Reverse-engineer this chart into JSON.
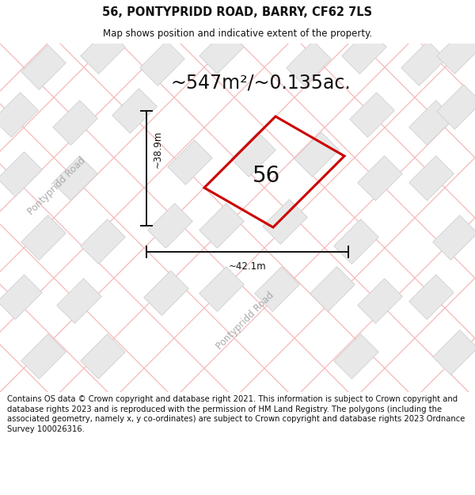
{
  "title": "56, PONTYPRIDD ROAD, BARRY, CF62 7LS",
  "subtitle": "Map shows position and indicative extent of the property.",
  "area_label": "~547m²/~0.135ac.",
  "number_label": "56",
  "dim_horizontal": "~42.1m",
  "dim_vertical": "~38.9m",
  "road_label_left": "Pontypridd Road",
  "road_label_bottom": "Pontypridd Road",
  "footer": "Contains OS data © Crown copyright and database right 2021. This information is subject to Crown copyright and database rights 2023 and is reproduced with the permission of HM Land Registry. The polygons (including the associated geometry, namely x, y co-ordinates) are subject to Crown copyright and database rights 2023 Ordnance Survey 100026316.",
  "map_bg": "#ffffff",
  "building_fill": "#e8e8e8",
  "building_edge": "#d0d0d0",
  "road_line_color": "#f5b8b8",
  "property_color": "#cc0000",
  "dim_line_color": "#111111",
  "title_fontsize": 10.5,
  "subtitle_fontsize": 8.5,
  "area_fontsize": 17,
  "number_fontsize": 20,
  "dim_fontsize": 8.5,
  "footer_fontsize": 7.2,
  "road_fontsize": 8.5,
  "road_label_color": "#aaaaaa"
}
